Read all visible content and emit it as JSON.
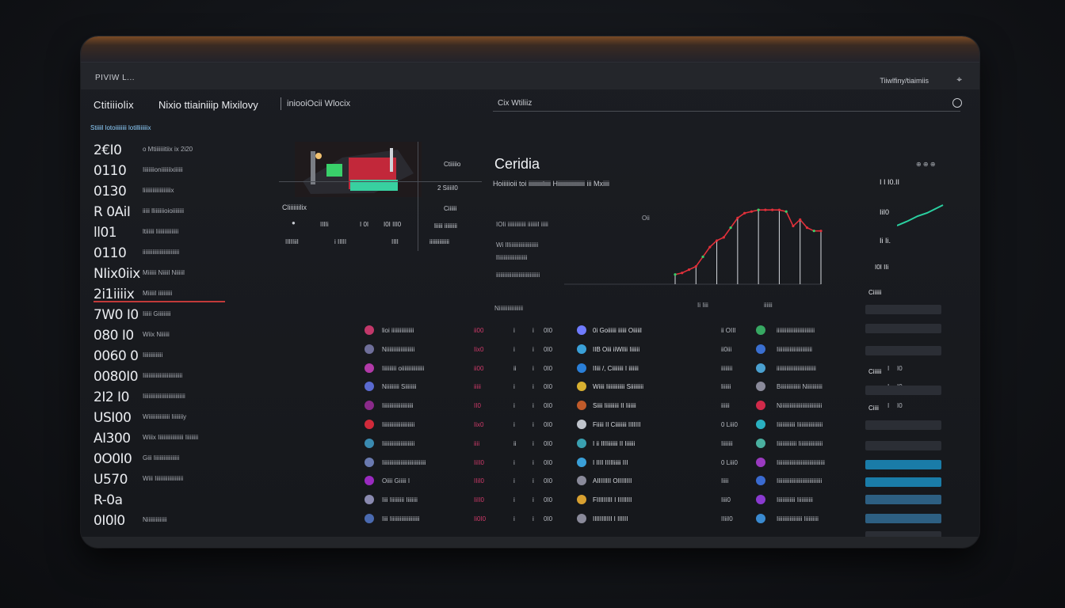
{
  "titlebar": {
    "left": "PIVIW L...",
    "right": "Tiiwlfiny/tiaimiis",
    "pin": "⌖"
  },
  "header": {
    "brand": "Ctitiiiolix",
    "brand_sub": "Nixio ttiainiiip Mixilovy",
    "tab": "iniooiOcii Wlocix",
    "search": "Cix Wtiliiz"
  },
  "left_panel": {
    "title": "Stiiiil lotoiiiiiiii lotilliiiiiix",
    "rows": [
      {
        "big": "2€I0",
        "small": "o Mtiiiiiiitiix ix 2i20"
      },
      {
        "big": "0110",
        "small": "Iiiiiiiioniiiiiiixiiiiii"
      },
      {
        "big": "0130",
        "small": "liiiiiiiiiiiiiiiiiiix"
      },
      {
        "big": "R 0AiI",
        "small": "iiiii lliiiiiiioioiiiiiiii"
      },
      {
        "big": "ll01",
        "small": "ltiiiiii liiiiiiiiiiiiiii"
      },
      {
        "big": "0110",
        "small": "iiiiiiiiiiiiiiiiiiiiiiiiii"
      },
      {
        "big": "NIix0iix",
        "small": "Miiiiii Niiiil Niiiiil"
      },
      {
        "big": "2i1iiiix",
        "small": "Miiiiil iiiiiiiiii",
        "active": true
      },
      {
        "big": "7W0 I0",
        "small": "Iiiiii Giiiiiiiii"
      },
      {
        "big": "080 I0",
        "small": "Wiix Niiiiii"
      },
      {
        "big": "0060 0",
        "small": "Iiiiiiiiiiiiii"
      },
      {
        "big": "0080I0",
        "small": "Iiiiiiiiiiiiiiiiiiiiiiiiiiii"
      },
      {
        "big": "2I2 I0",
        "small": "Iiiiiiiiiiiiiiiiiiiiiiiiiiiiii"
      },
      {
        "big": "USI00",
        "small": "Wiiiiiiiiiiiiiii Iiiiiiiiy"
      },
      {
        "big": "AI300",
        "small": "Wiiix Iiiiiiiiiiiiiiiiii Iiiiiiiii"
      },
      {
        "big": "0O0I0",
        "small": "Giii Iiiiiiiiiiiiiiiiii"
      },
      {
        "big": "U570",
        "small": "Wiii Iiiiiiiiiiiiiiiiiiii"
      },
      {
        "big": "R-0a",
        "small": ""
      },
      {
        "big": "0I0l0",
        "small": "Niiiiiiiiiiiiii"
      }
    ]
  },
  "panel_a": {
    "thumb_label": "Cliiiiiiilix",
    "top_label": "Ctiiiiio",
    "stat_1": "2 SiiiiI0",
    "stat_2": "Ciiiiii",
    "stat_3": "liiiii iiiiiiiii",
    "stat_4": "iiiiiiiiiiiiii",
    "row_a": [
      "●",
      "IIIIi",
      "I 0I",
      "I0I III0"
    ],
    "row_b": [
      "IIIIIiiI",
      "i IIIII",
      "IIII"
    ]
  },
  "chart": {
    "title": "Ceridia",
    "subtitle": "Hoiiiiioii toi iiiiiiiiiliiii Hiiiiiiiiiiiiiiiii iii Mxiiii",
    "meta_1": "IOIi iiiiiiiiiiiii iiiiiiiI iiiii",
    "meta_2": "Wi lIIiiiiiiiiiiiiiiiiiiii",
    "meta_3": "lIiiiiiiiiiiiiiiiiiiii",
    "meta_4": "iiiiiiiiiiiiiiiiiiiiiiiiiiiiiii",
    "meta_5": "Niiiiiiiiiiiiiiiii",
    "axis_1": "Ii Iiii",
    "axis_2": "iiiiii",
    "tag": "Oii"
  },
  "chart_data": {
    "type": "line",
    "x": [
      0,
      1,
      2,
      3,
      4,
      5,
      6,
      7,
      8,
      9,
      10,
      11,
      12,
      13,
      14,
      15,
      16,
      17,
      18,
      19,
      20,
      21
    ],
    "series": [
      {
        "values": [
          12,
          14,
          18,
          22,
          34,
          46,
          54,
          58,
          70,
          82,
          88,
          90,
          92,
          92,
          92,
          92,
          90,
          72,
          80,
          70,
          66,
          66
        ]
      }
    ],
    "ylim": [
      0,
      100
    ]
  },
  "table": {
    "rows": [
      {
        "a": "lioi iiiiiiiiiiiiiiii",
        "b": "ii00",
        "c": "i",
        "d": "i",
        "e": "0I0",
        "f": "0i Goiiiiii iiiiii Oiiiiil",
        "g": "ii OIII",
        "h": "iiiiiiiiiiiiiiiiiiiiiiiiiii",
        "i": "i",
        "j": "I0",
        "c1": "#c2386a",
        "c2": "#6f7bff",
        "c3": "#37a862"
      },
      {
        "a": "Niiiiiiiiiiiiiiiiiiii",
        "b": "Iix0",
        "c": "i",
        "d": "i",
        "e": "0I0",
        "f": "IIB Oiii iiWilii Iiiiiii",
        "g": "ii0iii",
        "h": "Iiiiiiiiiiiiiiiiiiiiiiiii",
        "i": "I",
        "j": "I0",
        "c1": "#6f6f9a",
        "c2": "#3aa0d8",
        "c3": "#3a6fd0"
      },
      {
        "a": "Iiiiiiiiii oiiiiiiiiiiiiiiii",
        "b": "ii00",
        "c": "ii",
        "d": "i",
        "e": "0I0",
        "f": "IIiii /, Ciiiiiiii I iiiiiii",
        "g": "iiiiiiii",
        "h": "iiiiiiiiiiiiiiiiiiiiiiiiiiii",
        "i": "I",
        "j": "I0",
        "c1": "#b23aa8",
        "c2": "#2a7fd8",
        "c3": "#4aa0d0"
      },
      {
        "a": "Niiiiiiiii Siiiiiiii",
        "b": "iiiii",
        "c": "i",
        "d": "i",
        "e": "0I0",
        "f": "Wiiii Iiiiiiiiiiiii Siiiiiiiii",
        "g": "liiiiii",
        "h": "Biiiiiiiiiiiiii Niiiiiiiiiii",
        "i": "I",
        "j": "I0",
        "c1": "#5a6ad0",
        "c2": "#d8b030",
        "c3": "#8a8a9a"
      },
      {
        "a": "Iiiiiiiiiiiiiiiiiiiiii",
        "b": "II0",
        "c": "i",
        "d": "i",
        "e": "0I0",
        "f": "Siiii Iiiiiiiiii II Iiiiiii",
        "g": "iiiiii",
        "h": "Niiiiiiiiiiiiiiiiiiiiiiiiiiiii",
        "i": "I",
        "j": "I0",
        "c1": "#8a2a8a",
        "c2": "#c05a2a",
        "c3": "#d02a4a"
      },
      {
        "a": "Iiiiiiiiiiiiiiiiiiiiiii",
        "b": "Iix0",
        "c": "i",
        "d": "i",
        "e": "0I0",
        "f": "Fiiiii II Ciiiiiiii IIIIIII",
        "g": "0 Liii0",
        "h": "Iiiiiiiiiiiii Iiiiiiiiiiiiiiiiii",
        "i": "I",
        "j": "I0",
        "c1": "#d02a3a",
        "c2": "#c0c4cc",
        "c3": "#2ab0c0"
      },
      {
        "a": "Iiiiiiiiiiiiiiiiiiiiiii",
        "b": "iiii",
        "c": "ii",
        "d": "i",
        "e": "0I0",
        "f": "I ii IIIIiiiiiii II Iiiiiii",
        "g": "Iiiiiiii",
        "h": "Iiiiiiiiiiiiii Iiiiiiiiiiiiiiiii",
        "i": "I",
        "j": "I0",
        "c1": "#3a8ab0",
        "c2": "#3aa0b0",
        "c3": "#4ab0a0"
      },
      {
        "a": "Iiiiiiiiiiiiiiiiiiiiiiiiiiiiiii",
        "b": "IiII0",
        "c": "i",
        "d": "i",
        "e": "0I0",
        "f": "I IIII IIIIIiiiii III",
        "g": "0 Liii0",
        "h": "Iiiiiiiiiiiiiiiiiiiiiiiiiiiiiiiiii",
        "i": "I",
        "j": "I0",
        "c1": "#6a7ab0",
        "c2": "#3aa0d8",
        "c3": "#9a3ac0"
      },
      {
        "a": "Oiiii Giiiii I",
        "b": "IIiI0",
        "c": "i",
        "d": "i",
        "e": "0I0",
        "f": "AIIIIIIII OIIIIIIII",
        "g": "Iiiii",
        "h": "Iiiiiiiiiiiiiiiiiiiiiiiiiiiiiiii",
        "i": "I",
        "j": "Ii0",
        "c1": "#9a2ac0",
        "c2": "#8a8a9a",
        "c3": "#3a6ad0"
      },
      {
        "a": "Iiii Iiiiiiiiii Iiiiiiii",
        "b": "IiII0",
        "c": "i",
        "d": "i",
        "e": "0I0",
        "f": "FIIIIIIIII I IIIIIIII",
        "g": "Iiii0",
        "h": "Iiiiiiiiiiiii Iiiiiiiiiii",
        "i": "I",
        "j": "I0",
        "c1": "#8a8ab0",
        "c2": "#d8a030",
        "c3": "#8a3ad0"
      },
      {
        "a": "Iiii Iiiiiiiiiiiiiiiiiiiii",
        "b": "Ii0I0",
        "c": "i",
        "d": "i",
        "e": "0I0",
        "f": "IIIIIIIIIII I IIIIII",
        "g": "IIiiI0",
        "h": "Iiiiiiiiiiiiiiiiii Iiiiiiiiii",
        "i": "I",
        "j": "I0",
        "c1": "#4a6ab0",
        "c2": "#8a8a9a",
        "c3": "#3a8ad0"
      }
    ]
  },
  "right_panel": {
    "stat_1": "I I I0.II",
    "stat_2": "IiI0",
    "stat_3": "Ii Ii.",
    "stat_4": "I0I IIi",
    "label_1": "Ciiiiii",
    "label_2": "Ciiiiii",
    "label_3": "Ciiii",
    "top_icons": "⊕ ⊕ ⊕"
  }
}
